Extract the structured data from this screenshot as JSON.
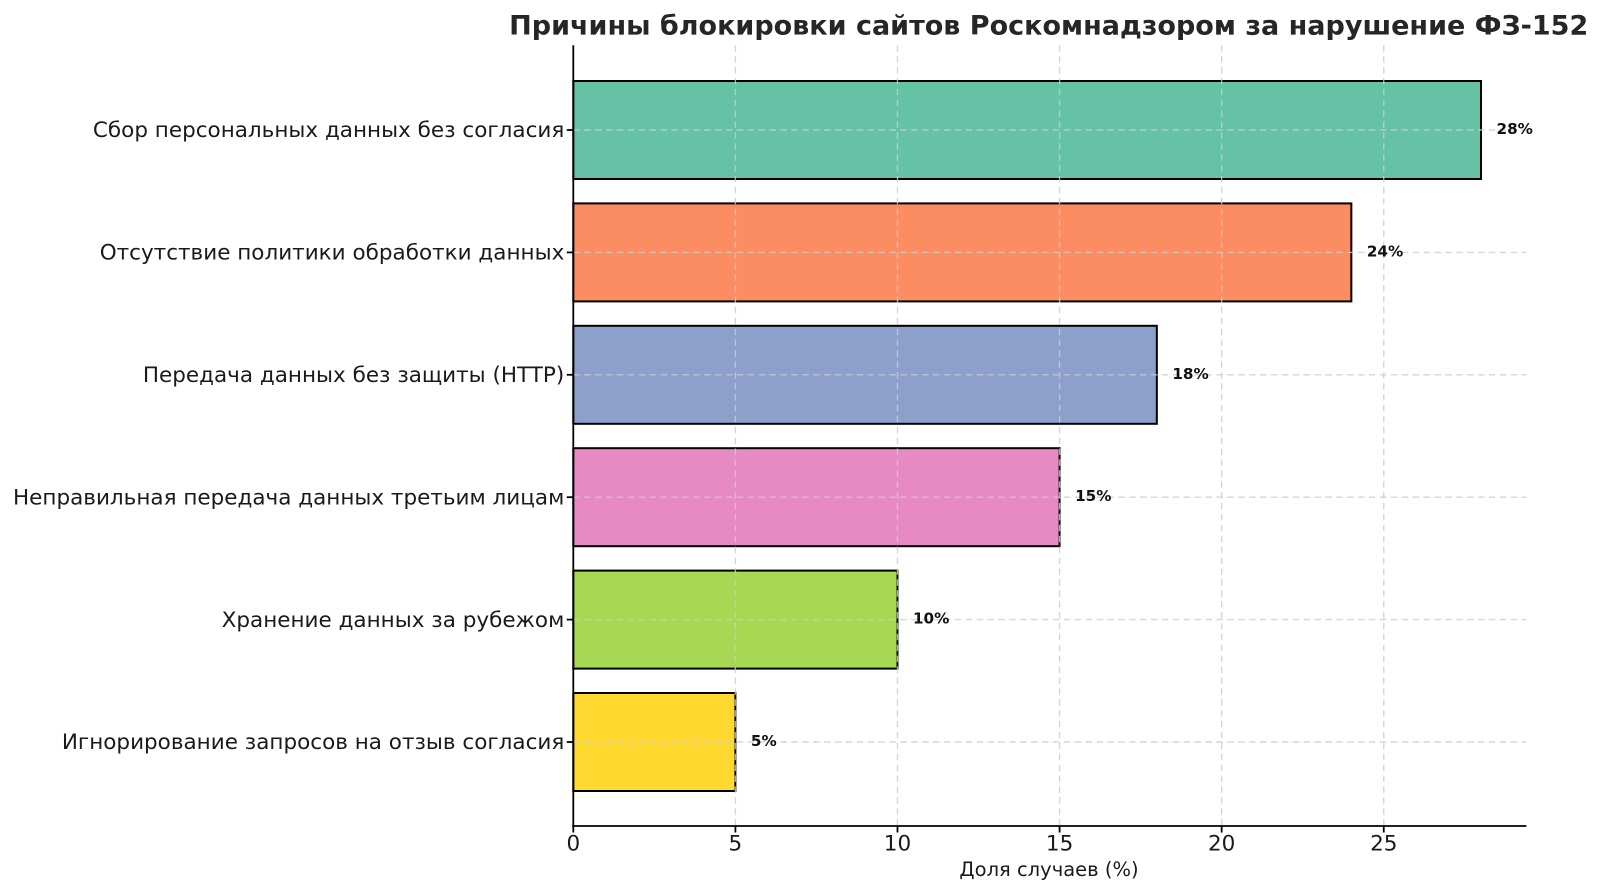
{
  "chart_data": {
    "type": "bar",
    "orientation": "horizontal",
    "title": "Причины блокировки сайтов Роскомнадзором за нарушение ФЗ-152",
    "xlabel": "Доля случаев (%)",
    "categories": [
      "Сбор персональных данных без согласия",
      "Отсутствие политики обработки данных",
      "Передача данных без защиты (HTTP)",
      "Неправильная передача данных третьим лицам",
      "Хранение данных за рубежом",
      "Игнорирование запросов на отзыв согласия"
    ],
    "values": [
      28,
      24,
      18,
      15,
      10,
      5
    ],
    "value_labels": [
      "28%",
      "24%",
      "18%",
      "15%",
      "10%",
      "5%"
    ],
    "bar_colors": [
      "#66c2a5",
      "#fc8d62",
      "#8da0cb",
      "#e78ac3",
      "#a6d854",
      "#ffd92f"
    ],
    "bar_edge_color": "#000000",
    "x_ticks": [
      0,
      5,
      10,
      15,
      20,
      25
    ],
    "x_tick_labels": [
      "0",
      "5",
      "10",
      "15",
      "20",
      "25"
    ],
    "xlim": [
      0,
      29.4
    ],
    "grid": "dashed",
    "grid_color": "#cccccc",
    "legend_position": "none"
  }
}
